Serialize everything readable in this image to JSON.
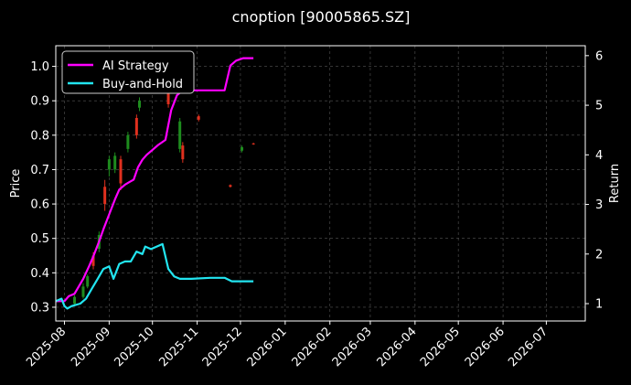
{
  "chart_data": {
    "type": "line",
    "title": "cnoption [90005865.SZ]",
    "xlabel": "",
    "ylabel": "Price",
    "y2label": "Return",
    "x_ticks": [
      "2025-08",
      "2025-09",
      "2025-10",
      "2025-11",
      "2025-12",
      "2026-01",
      "2026-02",
      "2026-03",
      "2026-04",
      "2026-05",
      "2026-06",
      "2026-07"
    ],
    "y_ticks": [
      "0.3",
      "0.4",
      "0.5",
      "0.6",
      "0.7",
      "0.8",
      "0.9",
      "1.0"
    ],
    "y2_ticks": [
      "1",
      "2",
      "3",
      "4",
      "5",
      "6"
    ],
    "xlim": [
      "2025-07-26",
      "2026-07-28"
    ],
    "ylim": [
      0.26,
      1.06
    ],
    "y2lim": [
      0.65,
      6.2
    ],
    "grid": true,
    "legend_position": "top-left",
    "colors": {
      "background": "#000000",
      "up": "#1e8c1e",
      "down": "#e0301e",
      "strategy": "#ff00ff",
      "buyhold": "#22e5f0",
      "grid": "#555555",
      "text": "#ffffff"
    },
    "candles": [
      {
        "date": "2025-08-08",
        "open": 0.31,
        "close": 0.33,
        "low": 0.305,
        "high": 0.335
      },
      {
        "date": "2025-08-14",
        "open": 0.33,
        "close": 0.36,
        "low": 0.325,
        "high": 0.37
      },
      {
        "date": "2025-08-17",
        "open": 0.36,
        "close": 0.39,
        "low": 0.355,
        "high": 0.395
      },
      {
        "date": "2025-08-21",
        "open": 0.45,
        "close": 0.42,
        "low": 0.41,
        "high": 0.46
      },
      {
        "date": "2025-08-25",
        "open": 0.47,
        "close": 0.51,
        "low": 0.46,
        "high": 0.52
      },
      {
        "date": "2025-08-29",
        "open": 0.65,
        "close": 0.6,
        "low": 0.58,
        "high": 0.67
      },
      {
        "date": "2025-09-01",
        "open": 0.7,
        "close": 0.73,
        "low": 0.68,
        "high": 0.74
      },
      {
        "date": "2025-09-05",
        "open": 0.7,
        "close": 0.74,
        "low": 0.69,
        "high": 0.75
      },
      {
        "date": "2025-09-09",
        "open": 0.73,
        "close": 0.66,
        "low": 0.64,
        "high": 0.74
      },
      {
        "date": "2025-09-14",
        "open": 0.76,
        "close": 0.8,
        "low": 0.75,
        "high": 0.81
      },
      {
        "date": "2025-09-20",
        "open": 0.85,
        "close": 0.8,
        "low": 0.79,
        "high": 0.86
      },
      {
        "date": "2025-09-22",
        "open": 0.88,
        "close": 0.9,
        "low": 0.87,
        "high": 0.91
      },
      {
        "date": "2025-10-12",
        "open": 0.93,
        "close": 0.89,
        "low": 0.88,
        "high": 0.94
      },
      {
        "date": "2025-10-20",
        "open": 0.76,
        "close": 0.84,
        "low": 0.75,
        "high": 0.85
      },
      {
        "date": "2025-10-22",
        "open": 0.77,
        "close": 0.73,
        "low": 0.72,
        "high": 0.78
      },
      {
        "date": "2025-11-02",
        "open": 0.855,
        "close": 0.845,
        "low": 0.84,
        "high": 0.86
      },
      {
        "date": "2025-11-24",
        "open": 0.655,
        "close": 0.65,
        "low": 0.648,
        "high": 0.657
      },
      {
        "date": "2025-12-02",
        "open": 0.755,
        "close": 0.765,
        "low": 0.75,
        "high": 0.77
      },
      {
        "date": "2025-12-10",
        "open": 0.776,
        "close": 0.774,
        "low": 0.772,
        "high": 0.778
      }
    ],
    "series": [
      {
        "name": "AI Strategy",
        "axis": "right",
        "x": [
          "2025-07-26",
          "2025-08-01",
          "2025-08-04",
          "2025-08-08",
          "2025-08-14",
          "2025-08-18",
          "2025-08-21",
          "2025-08-25",
          "2025-08-28",
          "2025-09-01",
          "2025-09-05",
          "2025-09-08",
          "2025-09-12",
          "2025-09-15",
          "2025-09-18",
          "2025-09-21",
          "2025-09-24",
          "2025-09-27",
          "2025-10-01",
          "2025-10-05",
          "2025-10-10",
          "2025-10-14",
          "2025-10-18",
          "2025-10-22",
          "2025-10-26",
          "2025-11-03",
          "2025-11-10",
          "2025-11-20",
          "2025-11-24",
          "2025-11-28",
          "2025-12-03",
          "2025-12-10"
        ],
        "values": [
          1.05,
          1.05,
          1.15,
          1.2,
          1.5,
          1.75,
          1.95,
          2.25,
          2.5,
          2.8,
          3.1,
          3.3,
          3.4,
          3.45,
          3.5,
          3.75,
          3.9,
          4.0,
          4.1,
          4.2,
          4.3,
          4.9,
          5.2,
          5.3,
          5.3,
          5.3,
          5.3,
          5.3,
          5.8,
          5.9,
          5.95,
          5.95
        ]
      },
      {
        "name": "Buy-and-Hold",
        "axis": "right",
        "x": [
          "2025-07-26",
          "2025-07-30",
          "2025-08-01",
          "2025-08-03",
          "2025-08-06",
          "2025-08-12",
          "2025-08-16",
          "2025-08-20",
          "2025-08-24",
          "2025-08-28",
          "2025-09-01",
          "2025-09-04",
          "2025-09-08",
          "2025-09-12",
          "2025-09-16",
          "2025-09-20",
          "2025-09-24",
          "2025-09-26",
          "2025-09-30",
          "2025-10-04",
          "2025-10-08",
          "2025-10-12",
          "2025-10-16",
          "2025-10-20",
          "2025-10-28",
          "2025-11-10",
          "2025-11-20",
          "2025-11-25",
          "2025-12-05",
          "2025-12-10"
        ],
        "values": [
          1.05,
          1.1,
          0.95,
          0.9,
          0.95,
          1.0,
          1.1,
          1.3,
          1.5,
          1.7,
          1.75,
          1.5,
          1.8,
          1.85,
          1.85,
          2.05,
          2.0,
          2.15,
          2.1,
          2.15,
          2.2,
          1.7,
          1.55,
          1.5,
          1.5,
          1.52,
          1.52,
          1.45,
          1.45,
          1.45
        ]
      }
    ]
  }
}
